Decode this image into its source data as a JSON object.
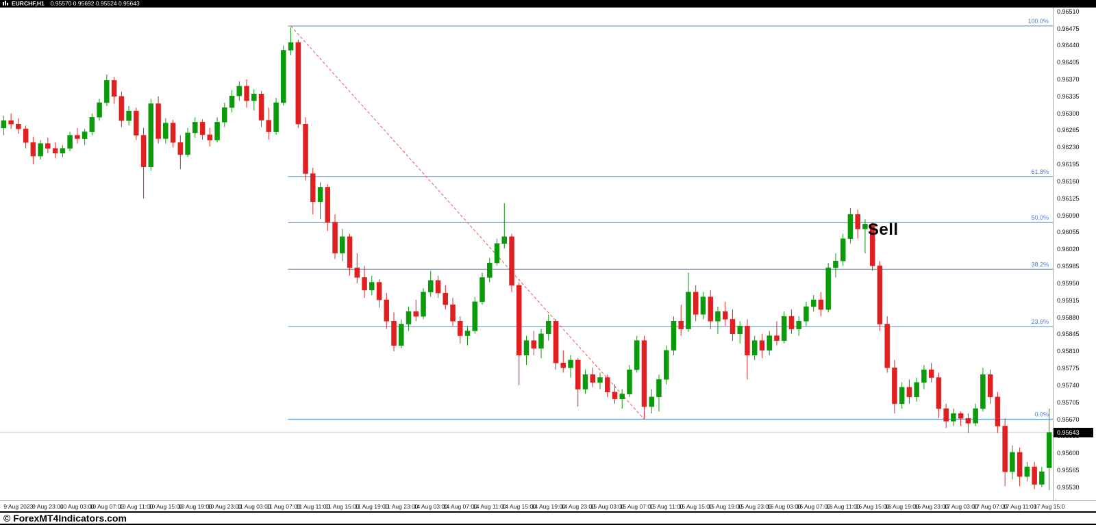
{
  "title_bar": {
    "symbol": "EURCHF,H1",
    "ohlc": "0.95570 0.95692 0.95524 0.95643"
  },
  "annotation": {
    "text": "Sell",
    "anchor_index": 117,
    "price": 0.9606
  },
  "current_price": {
    "value": "0.95643",
    "price": 0.95643
  },
  "footer": {
    "copyright": "© ForexMT4Indicators.com"
  },
  "colors": {
    "background": "#ffffff",
    "bull": "#0a9a0a",
    "bear": "#e02020",
    "fib_line": "#5b9bd5",
    "fib_label": "#4a7fd4",
    "trendline": "#ee5555",
    "current_price_line": "#c8c8c8",
    "price_tag_bg": "#000000",
    "price_tag_text": "#ffffff",
    "axis_text": "#111111",
    "title_bar_bg": "#000000",
    "title_bar_text": "#ffffff"
  },
  "chart_data": {
    "type": "candlestick",
    "title": "EURCHF,H1",
    "symbol": "EURCHF",
    "timeframe": "H1",
    "grid": "off",
    "ohlc_current": {
      "open": 0.9557,
      "high": 0.95692,
      "low": 0.95524,
      "close": 0.95643
    },
    "y_axis": {
      "max": 0.96518,
      "min": 0.95503,
      "tick_labels": [
        "0.96510",
        "0.96475",
        "0.96440",
        "0.96405",
        "0.96370",
        "0.96335",
        "0.96300",
        "0.96265",
        "0.96230",
        "0.96195",
        "0.96160",
        "0.96125",
        "0.96090",
        "0.96055",
        "0.96020",
        "0.95985",
        "0.95950",
        "0.95915",
        "0.95880",
        "0.95845",
        "0.95810",
        "0.95775",
        "0.95740",
        "0.95705",
        "0.95670",
        "0.95635",
        "0.95600",
        "0.95565",
        "0.95530"
      ]
    },
    "x_axis": {
      "first_tick_index": 2,
      "tick_step": 4,
      "tick_labels": [
        "9 Aug 2023",
        "9 Aug 23:00",
        "10 Aug 03:00",
        "10 Aug 07:00",
        "10 Aug 11:00",
        "10 Aug 15:00",
        "10 Aug 19:00",
        "10 Aug 23:00",
        "11 Aug 03:00",
        "11 Aug 07:00",
        "11 Aug 11:00",
        "11 Aug 15:00",
        "11 Aug 19:00",
        "11 Aug 23:00",
        "14 Aug 03:00",
        "14 Aug 07:00",
        "14 Aug 11:00",
        "14 Aug 15:00",
        "14 Aug 19:00",
        "14 Aug 23:00",
        "15 Aug 03:00",
        "15 Aug 07:00",
        "15 Aug 11:00",
        "15 Aug 15:00",
        "15 Aug 19:00",
        "15 Aug 23:00",
        "16 Aug 03:00",
        "16 Aug 07:00",
        "16 Aug 11:00",
        "16 Aug 15:00",
        "16 Aug 19:00",
        "16 Aug 23:00",
        "17 Aug 03:00",
        "17 Aug 07:00",
        "17 Aug 11:00",
        "17 Aug 15:0"
      ]
    },
    "fibonacci": {
      "start_index": 39,
      "levels": [
        {
          "label": "100.0%",
          "price": 0.9648
        },
        {
          "label": "61.8%",
          "price": 0.9617
        },
        {
          "label": "50.0%",
          "price": 0.96075
        },
        {
          "label": "38.2%",
          "price": 0.95979
        },
        {
          "label": "23.6%",
          "price": 0.95861
        },
        {
          "label": "0.0%",
          "price": 0.9567
        }
      ],
      "trendline": {
        "from": {
          "index": 39,
          "price": 0.9648
        },
        "to": {
          "index": 87,
          "price": 0.9567
        }
      }
    },
    "candles": [
      [
        0.9627,
        0.96295,
        0.96255,
        0.96285
      ],
      [
        0.96285,
        0.963,
        0.96268,
        0.96278
      ],
      [
        0.96278,
        0.9629,
        0.96258,
        0.96268
      ],
      [
        0.96268,
        0.96275,
        0.96228,
        0.9624
      ],
      [
        0.9624,
        0.96252,
        0.96195,
        0.96212
      ],
      [
        0.96212,
        0.96245,
        0.96205,
        0.96238
      ],
      [
        0.96238,
        0.9625,
        0.96218,
        0.96228
      ],
      [
        0.96228,
        0.9624,
        0.96208,
        0.96218
      ],
      [
        0.96218,
        0.96235,
        0.9621,
        0.96228
      ],
      [
        0.96228,
        0.96262,
        0.96222,
        0.96255
      ],
      [
        0.96255,
        0.9627,
        0.96238,
        0.96248
      ],
      [
        0.96248,
        0.96268,
        0.96235,
        0.96262
      ],
      [
        0.96262,
        0.963,
        0.96255,
        0.96292
      ],
      [
        0.96292,
        0.9633,
        0.96285,
        0.96322
      ],
      [
        0.96322,
        0.9638,
        0.96315,
        0.96368
      ],
      [
        0.96368,
        0.96375,
        0.9632,
        0.96335
      ],
      [
        0.96335,
        0.96345,
        0.96272,
        0.96285
      ],
      [
        0.96285,
        0.96315,
        0.96275,
        0.96305
      ],
      [
        0.96305,
        0.96312,
        0.96245,
        0.96255
      ],
      [
        0.96255,
        0.9627,
        0.96125,
        0.9619
      ],
      [
        0.9619,
        0.9633,
        0.96182,
        0.9632
      ],
      [
        0.9632,
        0.96335,
        0.96238,
        0.96248
      ],
      [
        0.96248,
        0.9629,
        0.96238,
        0.9628
      ],
      [
        0.9628,
        0.96287,
        0.9623,
        0.9624
      ],
      [
        0.9624,
        0.96255,
        0.96185,
        0.96215
      ],
      [
        0.96215,
        0.9627,
        0.9621,
        0.9626
      ],
      [
        0.9626,
        0.96292,
        0.9625,
        0.96282
      ],
      [
        0.96282,
        0.96288,
        0.96246,
        0.96256
      ],
      [
        0.96256,
        0.9627,
        0.96232,
        0.96245
      ],
      [
        0.96245,
        0.96292,
        0.9624,
        0.96282
      ],
      [
        0.96282,
        0.96322,
        0.96272,
        0.96312
      ],
      [
        0.96312,
        0.96348,
        0.96302,
        0.96336
      ],
      [
        0.96336,
        0.96366,
        0.96326,
        0.96356
      ],
      [
        0.96356,
        0.9637,
        0.96312,
        0.96326
      ],
      [
        0.96326,
        0.9635,
        0.96306,
        0.9634
      ],
      [
        0.9634,
        0.96346,
        0.96272,
        0.96286
      ],
      [
        0.96286,
        0.96312,
        0.96246,
        0.96262
      ],
      [
        0.96262,
        0.96332,
        0.96256,
        0.96322
      ],
      [
        0.96322,
        0.9644,
        0.96316,
        0.9643
      ],
      [
        0.9643,
        0.96477,
        0.9642,
        0.96446
      ],
      [
        0.96446,
        0.96452,
        0.9627,
        0.96278
      ],
      [
        0.96278,
        0.96292,
        0.96162,
        0.96176
      ],
      [
        0.96176,
        0.96188,
        0.96092,
        0.96118
      ],
      [
        0.96118,
        0.96158,
        0.96082,
        0.96148
      ],
      [
        0.96148,
        0.96154,
        0.96058,
        0.96076
      ],
      [
        0.96076,
        0.96092,
        0.96,
        0.96012
      ],
      [
        0.96012,
        0.96062,
        0.95996,
        0.96046
      ],
      [
        0.96046,
        0.96052,
        0.95966,
        0.95982
      ],
      [
        0.95982,
        0.96012,
        0.9595,
        0.95962
      ],
      [
        0.95962,
        0.95986,
        0.9592,
        0.95936
      ],
      [
        0.95936,
        0.95966,
        0.95926,
        0.95952
      ],
      [
        0.95952,
        0.95958,
        0.959,
        0.95916
      ],
      [
        0.95916,
        0.9593,
        0.95856,
        0.95872
      ],
      [
        0.95872,
        0.9589,
        0.9581,
        0.95822
      ],
      [
        0.95822,
        0.95876,
        0.95816,
        0.95866
      ],
      [
        0.95866,
        0.95902,
        0.95852,
        0.95892
      ],
      [
        0.95892,
        0.95916,
        0.95872,
        0.95882
      ],
      [
        0.95882,
        0.9594,
        0.95876,
        0.95932
      ],
      [
        0.95932,
        0.95976,
        0.95922,
        0.95956
      ],
      [
        0.95956,
        0.95966,
        0.9592,
        0.9593
      ],
      [
        0.9593,
        0.95946,
        0.95896,
        0.95906
      ],
      [
        0.95906,
        0.9592,
        0.95862,
        0.95872
      ],
      [
        0.95872,
        0.95882,
        0.95826,
        0.95842
      ],
      [
        0.95842,
        0.95862,
        0.95822,
        0.95852
      ],
      [
        0.95852,
        0.95922,
        0.95846,
        0.95912
      ],
      [
        0.95912,
        0.95972,
        0.95906,
        0.95962
      ],
      [
        0.95962,
        0.96002,
        0.95952,
        0.95992
      ],
      [
        0.95992,
        0.96042,
        0.95986,
        0.96032
      ],
      [
        0.96032,
        0.96115,
        0.96022,
        0.96046
      ],
      [
        0.96046,
        0.96052,
        0.95932,
        0.95946
      ],
      [
        0.95946,
        0.95952,
        0.9574,
        0.95802
      ],
      [
        0.95802,
        0.95842,
        0.95782,
        0.95832
      ],
      [
        0.95832,
        0.95852,
        0.95802,
        0.95816
      ],
      [
        0.95816,
        0.95856,
        0.95796,
        0.95846
      ],
      [
        0.95846,
        0.95886,
        0.95832,
        0.95872
      ],
      [
        0.95872,
        0.95876,
        0.95772,
        0.95786
      ],
      [
        0.95786,
        0.95812,
        0.95766,
        0.95776
      ],
      [
        0.95776,
        0.95802,
        0.95756,
        0.95792
      ],
      [
        0.95792,
        0.95796,
        0.95696,
        0.95732
      ],
      [
        0.95732,
        0.95772,
        0.95722,
        0.95762
      ],
      [
        0.95762,
        0.95776,
        0.95736,
        0.95746
      ],
      [
        0.95746,
        0.95766,
        0.95732,
        0.95756
      ],
      [
        0.95756,
        0.95762,
        0.95716,
        0.95726
      ],
      [
        0.95726,
        0.95742,
        0.95702,
        0.95712
      ],
      [
        0.95712,
        0.95732,
        0.95692,
        0.95722
      ],
      [
        0.95722,
        0.95782,
        0.95716,
        0.95772
      ],
      [
        0.95772,
        0.95842,
        0.95766,
        0.95832
      ],
      [
        0.95832,
        0.95842,
        0.9567,
        0.95696
      ],
      [
        0.95696,
        0.95732,
        0.95682,
        0.95716
      ],
      [
        0.95716,
        0.95762,
        0.95686,
        0.95752
      ],
      [
        0.95752,
        0.95822,
        0.95742,
        0.95812
      ],
      [
        0.95812,
        0.95882,
        0.95802,
        0.95872
      ],
      [
        0.95872,
        0.95906,
        0.95842,
        0.95856
      ],
      [
        0.95856,
        0.95972,
        0.9585,
        0.95932
      ],
      [
        0.95932,
        0.95946,
        0.95872,
        0.95886
      ],
      [
        0.95886,
        0.95932,
        0.95876,
        0.95922
      ],
      [
        0.95922,
        0.95936,
        0.95856,
        0.95872
      ],
      [
        0.95872,
        0.95902,
        0.95846,
        0.95892
      ],
      [
        0.95892,
        0.95912,
        0.95862,
        0.95876
      ],
      [
        0.95876,
        0.95896,
        0.95832,
        0.95846
      ],
      [
        0.95846,
        0.95872,
        0.95826,
        0.95862
      ],
      [
        0.95862,
        0.95876,
        0.95752,
        0.95802
      ],
      [
        0.95802,
        0.95842,
        0.95792,
        0.95832
      ],
      [
        0.95832,
        0.95846,
        0.95796,
        0.95812
      ],
      [
        0.95812,
        0.95852,
        0.95802,
        0.95842
      ],
      [
        0.95842,
        0.95872,
        0.95822,
        0.95832
      ],
      [
        0.95832,
        0.95892,
        0.95826,
        0.95882
      ],
      [
        0.95882,
        0.95896,
        0.95846,
        0.95856
      ],
      [
        0.95856,
        0.95882,
        0.95842,
        0.95872
      ],
      [
        0.95872,
        0.95912,
        0.95862,
        0.95902
      ],
      [
        0.95902,
        0.95926,
        0.95892,
        0.95916
      ],
      [
        0.95916,
        0.95932,
        0.95882,
        0.95896
      ],
      [
        0.95896,
        0.95992,
        0.9589,
        0.95982
      ],
      [
        0.95982,
        0.96012,
        0.95962,
        0.95996
      ],
      [
        0.95996,
        0.96052,
        0.95986,
        0.96042
      ],
      [
        0.96042,
        0.96105,
        0.96032,
        0.96092
      ],
      [
        0.96092,
        0.96102,
        0.96042,
        0.96062
      ],
      [
        0.96062,
        0.96082,
        0.96012,
        0.96072
      ],
      [
        0.96072,
        0.96076,
        0.95976,
        0.95986
      ],
      [
        0.95986,
        0.95996,
        0.95852,
        0.95866
      ],
      [
        0.95866,
        0.95882,
        0.95766,
        0.95776
      ],
      [
        0.95776,
        0.95792,
        0.95682,
        0.95702
      ],
      [
        0.95702,
        0.95746,
        0.95692,
        0.95736
      ],
      [
        0.95736,
        0.95752,
        0.95702,
        0.95716
      ],
      [
        0.95716,
        0.95756,
        0.95706,
        0.95746
      ],
      [
        0.95746,
        0.95782,
        0.95732,
        0.95772
      ],
      [
        0.95772,
        0.95786,
        0.95746,
        0.95756
      ],
      [
        0.95756,
        0.95766,
        0.95672,
        0.95692
      ],
      [
        0.95692,
        0.95702,
        0.95652,
        0.95666
      ],
      [
        0.95666,
        0.95692,
        0.95656,
        0.95682
      ],
      [
        0.95682,
        0.95686,
        0.95656,
        0.95672
      ],
      [
        0.95672,
        0.95682,
        0.95642,
        0.95662
      ],
      [
        0.95662,
        0.95702,
        0.95656,
        0.95692
      ],
      [
        0.95692,
        0.95776,
        0.95686,
        0.95762
      ],
      [
        0.95762,
        0.95772,
        0.95702,
        0.95716
      ],
      [
        0.95716,
        0.95726,
        0.95642,
        0.95656
      ],
      [
        0.95656,
        0.95672,
        0.95532,
        0.95562
      ],
      [
        0.95562,
        0.95616,
        0.95546,
        0.95602
      ],
      [
        0.95602,
        0.95612,
        0.95532,
        0.95552
      ],
      [
        0.95552,
        0.95582,
        0.95542,
        0.95572
      ],
      [
        0.95572,
        0.95582,
        0.95526,
        0.95536
      ],
      [
        0.95536,
        0.95572,
        0.9553,
        0.95562
      ],
      [
        0.9557,
        0.95692,
        0.95524,
        0.95643
      ]
    ]
  }
}
